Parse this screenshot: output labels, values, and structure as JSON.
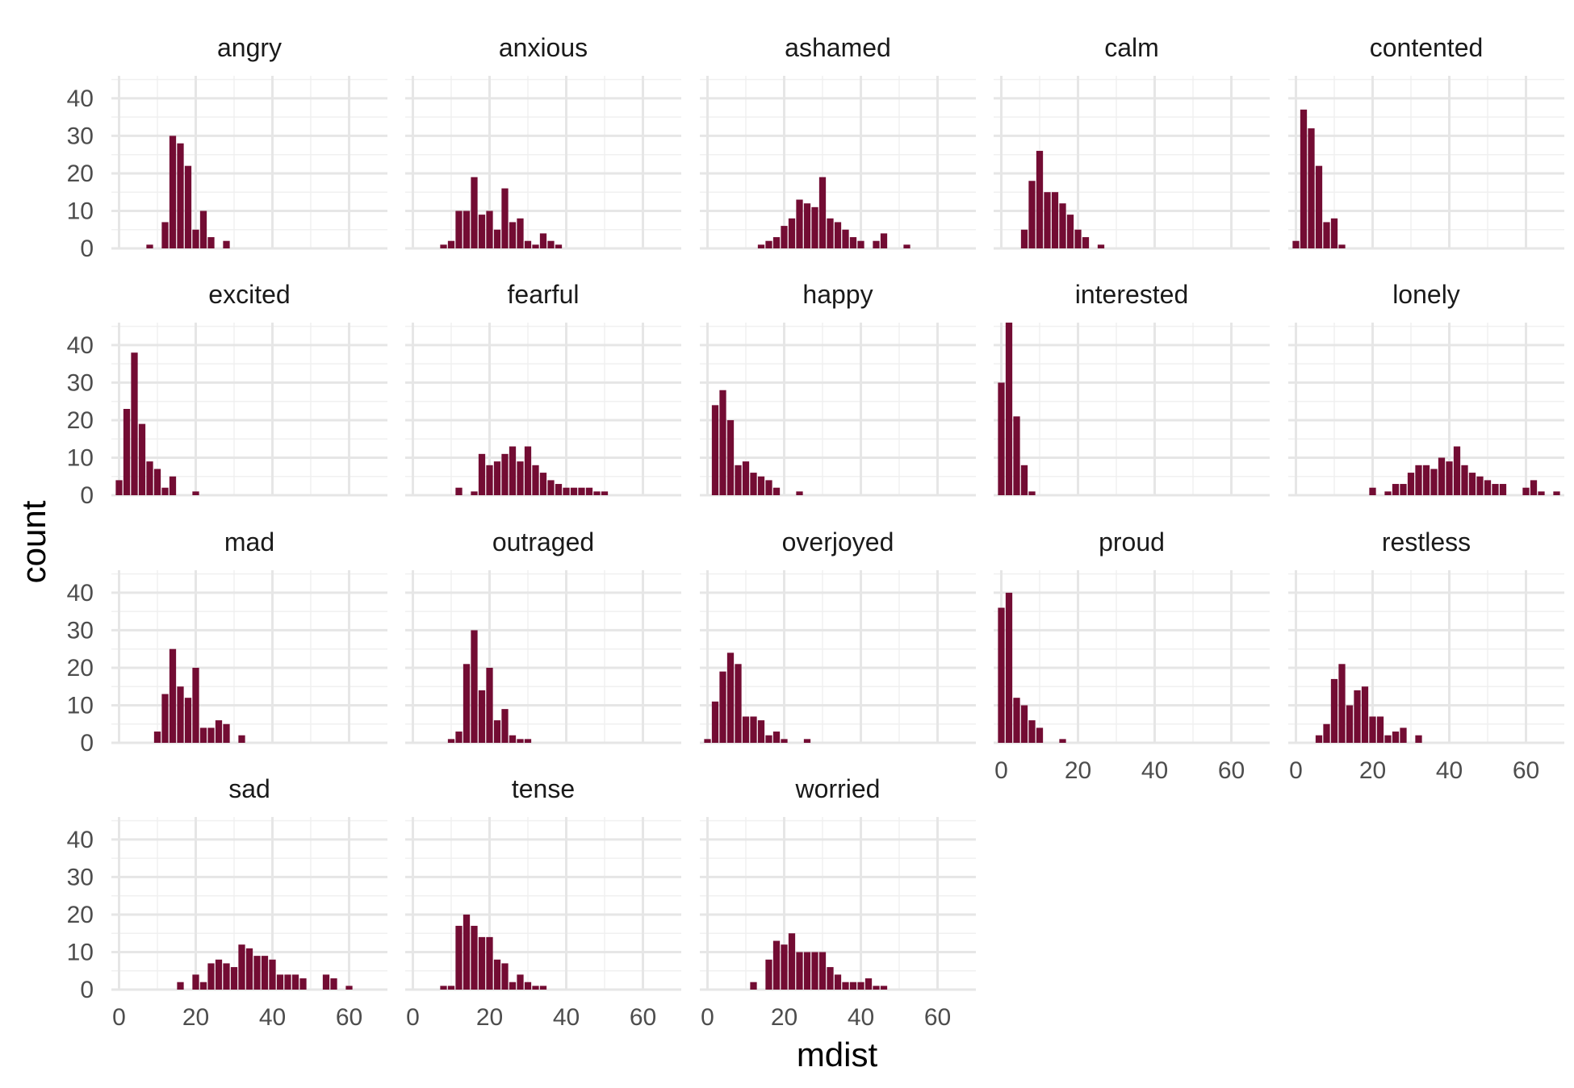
{
  "chart_data": {
    "type": "bar",
    "xlabel": "mdist",
    "ylabel": "count",
    "xlim": [
      -2,
      70
    ],
    "ylim": [
      0,
      46
    ],
    "x_ticks": [
      0,
      20,
      40,
      60
    ],
    "y_ticks": [
      0,
      10,
      20,
      30,
      40
    ],
    "bin_width": 1.74,
    "bar_color": "#730c33",
    "grid": true,
    "panels": [
      {
        "title": "angry",
        "bins": [
          {
            "x": 8,
            "y": 1
          },
          {
            "x": 12,
            "y": 7
          },
          {
            "x": 14,
            "y": 30
          },
          {
            "x": 16,
            "y": 28
          },
          {
            "x": 18,
            "y": 22
          },
          {
            "x": 20,
            "y": 5
          },
          {
            "x": 22,
            "y": 10
          },
          {
            "x": 24,
            "y": 3
          },
          {
            "x": 28,
            "y": 2
          }
        ]
      },
      {
        "title": "anxious",
        "bins": [
          {
            "x": 8,
            "y": 1
          },
          {
            "x": 10,
            "y": 2
          },
          {
            "x": 12,
            "y": 10
          },
          {
            "x": 14,
            "y": 10
          },
          {
            "x": 16,
            "y": 19
          },
          {
            "x": 18,
            "y": 9
          },
          {
            "x": 20,
            "y": 10
          },
          {
            "x": 22,
            "y": 5
          },
          {
            "x": 24,
            "y": 16
          },
          {
            "x": 26,
            "y": 7
          },
          {
            "x": 28,
            "y": 8
          },
          {
            "x": 30,
            "y": 2
          },
          {
            "x": 32,
            "y": 1
          },
          {
            "x": 34,
            "y": 4
          },
          {
            "x": 36,
            "y": 2
          },
          {
            "x": 38,
            "y": 1
          }
        ]
      },
      {
        "title": "ashamed",
        "bins": [
          {
            "x": 14,
            "y": 1
          },
          {
            "x": 16,
            "y": 2
          },
          {
            "x": 18,
            "y": 3
          },
          {
            "x": 20,
            "y": 6
          },
          {
            "x": 22,
            "y": 8
          },
          {
            "x": 24,
            "y": 13
          },
          {
            "x": 26,
            "y": 12
          },
          {
            "x": 28,
            "y": 11
          },
          {
            "x": 30,
            "y": 19
          },
          {
            "x": 32,
            "y": 8
          },
          {
            "x": 34,
            "y": 7
          },
          {
            "x": 36,
            "y": 5
          },
          {
            "x": 38,
            "y": 3
          },
          {
            "x": 40,
            "y": 2
          },
          {
            "x": 44,
            "y": 2
          },
          {
            "x": 46,
            "y": 4
          },
          {
            "x": 52,
            "y": 1
          }
        ]
      },
      {
        "title": "calm",
        "bins": [
          {
            "x": 6,
            "y": 5
          },
          {
            "x": 8,
            "y": 18
          },
          {
            "x": 10,
            "y": 26
          },
          {
            "x": 12,
            "y": 15
          },
          {
            "x": 14,
            "y": 15
          },
          {
            "x": 16,
            "y": 12
          },
          {
            "x": 18,
            "y": 9
          },
          {
            "x": 20,
            "y": 5
          },
          {
            "x": 22,
            "y": 3
          },
          {
            "x": 26,
            "y": 1
          }
        ]
      },
      {
        "title": "contented",
        "bins": [
          {
            "x": 0,
            "y": 2
          },
          {
            "x": 2,
            "y": 37
          },
          {
            "x": 4,
            "y": 32
          },
          {
            "x": 6,
            "y": 22
          },
          {
            "x": 8,
            "y": 7
          },
          {
            "x": 10,
            "y": 8
          },
          {
            "x": 12,
            "y": 1
          }
        ]
      },
      {
        "title": "excited",
        "bins": [
          {
            "x": 0,
            "y": 4
          },
          {
            "x": 2,
            "y": 23
          },
          {
            "x": 4,
            "y": 38
          },
          {
            "x": 6,
            "y": 19
          },
          {
            "x": 8,
            "y": 9
          },
          {
            "x": 10,
            "y": 7
          },
          {
            "x": 12,
            "y": 2
          },
          {
            "x": 14,
            "y": 5
          },
          {
            "x": 20,
            "y": 1
          }
        ]
      },
      {
        "title": "fearful",
        "bins": [
          {
            "x": 12,
            "y": 2
          },
          {
            "x": 16,
            "y": 1
          },
          {
            "x": 18,
            "y": 11
          },
          {
            "x": 20,
            "y": 8
          },
          {
            "x": 22,
            "y": 9
          },
          {
            "x": 24,
            "y": 11
          },
          {
            "x": 26,
            "y": 13
          },
          {
            "x": 28,
            "y": 9
          },
          {
            "x": 30,
            "y": 13
          },
          {
            "x": 32,
            "y": 8
          },
          {
            "x": 34,
            "y": 6
          },
          {
            "x": 36,
            "y": 4
          },
          {
            "x": 38,
            "y": 3
          },
          {
            "x": 40,
            "y": 2
          },
          {
            "x": 42,
            "y": 2
          },
          {
            "x": 44,
            "y": 2
          },
          {
            "x": 46,
            "y": 2
          },
          {
            "x": 48,
            "y": 1
          },
          {
            "x": 50,
            "y": 1
          }
        ]
      },
      {
        "title": "happy",
        "bins": [
          {
            "x": 2,
            "y": 24
          },
          {
            "x": 4,
            "y": 28
          },
          {
            "x": 6,
            "y": 20
          },
          {
            "x": 8,
            "y": 8
          },
          {
            "x": 10,
            "y": 9
          },
          {
            "x": 12,
            "y": 6
          },
          {
            "x": 14,
            "y": 5
          },
          {
            "x": 16,
            "y": 4
          },
          {
            "x": 18,
            "y": 2
          },
          {
            "x": 24,
            "y": 1
          }
        ]
      },
      {
        "title": "interested",
        "bins": [
          {
            "x": 0,
            "y": 30
          },
          {
            "x": 2,
            "y": 46
          },
          {
            "x": 4,
            "y": 21
          },
          {
            "x": 6,
            "y": 8
          },
          {
            "x": 8,
            "y": 1
          }
        ]
      },
      {
        "title": "lonely",
        "bins": [
          {
            "x": 20,
            "y": 2
          },
          {
            "x": 24,
            "y": 1
          },
          {
            "x": 26,
            "y": 3
          },
          {
            "x": 28,
            "y": 3
          },
          {
            "x": 30,
            "y": 6
          },
          {
            "x": 32,
            "y": 8
          },
          {
            "x": 34,
            "y": 8
          },
          {
            "x": 36,
            "y": 7
          },
          {
            "x": 38,
            "y": 10
          },
          {
            "x": 40,
            "y": 9
          },
          {
            "x": 42,
            "y": 13
          },
          {
            "x": 44,
            "y": 8
          },
          {
            "x": 46,
            "y": 6
          },
          {
            "x": 48,
            "y": 5
          },
          {
            "x": 50,
            "y": 4
          },
          {
            "x": 52,
            "y": 3
          },
          {
            "x": 54,
            "y": 3
          },
          {
            "x": 60,
            "y": 2
          },
          {
            "x": 62,
            "y": 4
          },
          {
            "x": 64,
            "y": 1
          },
          {
            "x": 68,
            "y": 1
          }
        ]
      },
      {
        "title": "mad",
        "bins": [
          {
            "x": 10,
            "y": 3
          },
          {
            "x": 12,
            "y": 13
          },
          {
            "x": 14,
            "y": 25
          },
          {
            "x": 16,
            "y": 15
          },
          {
            "x": 18,
            "y": 12
          },
          {
            "x": 20,
            "y": 20
          },
          {
            "x": 22,
            "y": 4
          },
          {
            "x": 24,
            "y": 4
          },
          {
            "x": 26,
            "y": 6
          },
          {
            "x": 28,
            "y": 5
          },
          {
            "x": 32,
            "y": 2
          }
        ]
      },
      {
        "title": "outraged",
        "bins": [
          {
            "x": 10,
            "y": 1
          },
          {
            "x": 12,
            "y": 3
          },
          {
            "x": 14,
            "y": 21
          },
          {
            "x": 16,
            "y": 30
          },
          {
            "x": 18,
            "y": 14
          },
          {
            "x": 20,
            "y": 20
          },
          {
            "x": 22,
            "y": 6
          },
          {
            "x": 24,
            "y": 9
          },
          {
            "x": 26,
            "y": 2
          },
          {
            "x": 28,
            "y": 1
          },
          {
            "x": 30,
            "y": 1
          }
        ]
      },
      {
        "title": "overjoyed",
        "bins": [
          {
            "x": 0,
            "y": 1
          },
          {
            "x": 2,
            "y": 11
          },
          {
            "x": 4,
            "y": 19
          },
          {
            "x": 6,
            "y": 24
          },
          {
            "x": 8,
            "y": 21
          },
          {
            "x": 10,
            "y": 7
          },
          {
            "x": 12,
            "y": 7
          },
          {
            "x": 14,
            "y": 6
          },
          {
            "x": 16,
            "y": 2
          },
          {
            "x": 18,
            "y": 3
          },
          {
            "x": 20,
            "y": 1
          },
          {
            "x": 26,
            "y": 1
          }
        ]
      },
      {
        "title": "proud",
        "bins": [
          {
            "x": 0,
            "y": 36
          },
          {
            "x": 2,
            "y": 40
          },
          {
            "x": 4,
            "y": 12
          },
          {
            "x": 6,
            "y": 10
          },
          {
            "x": 8,
            "y": 6
          },
          {
            "x": 10,
            "y": 4
          },
          {
            "x": 16,
            "y": 1
          }
        ]
      },
      {
        "title": "restless",
        "bins": [
          {
            "x": 6,
            "y": 2
          },
          {
            "x": 8,
            "y": 5
          },
          {
            "x": 10,
            "y": 17
          },
          {
            "x": 12,
            "y": 21
          },
          {
            "x": 14,
            "y": 10
          },
          {
            "x": 16,
            "y": 14
          },
          {
            "x": 18,
            "y": 15
          },
          {
            "x": 20,
            "y": 7
          },
          {
            "x": 22,
            "y": 7
          },
          {
            "x": 24,
            "y": 2
          },
          {
            "x": 26,
            "y": 3
          },
          {
            "x": 28,
            "y": 4
          },
          {
            "x": 32,
            "y": 2
          }
        ]
      },
      {
        "title": "sad",
        "bins": [
          {
            "x": 16,
            "y": 2
          },
          {
            "x": 20,
            "y": 4
          },
          {
            "x": 22,
            "y": 2
          },
          {
            "x": 24,
            "y": 7
          },
          {
            "x": 26,
            "y": 8
          },
          {
            "x": 28,
            "y": 7
          },
          {
            "x": 30,
            "y": 6
          },
          {
            "x": 32,
            "y": 12
          },
          {
            "x": 34,
            "y": 11
          },
          {
            "x": 36,
            "y": 9
          },
          {
            "x": 38,
            "y": 9
          },
          {
            "x": 40,
            "y": 8
          },
          {
            "x": 42,
            "y": 4
          },
          {
            "x": 44,
            "y": 4
          },
          {
            "x": 46,
            "y": 4
          },
          {
            "x": 48,
            "y": 3
          },
          {
            "x": 54,
            "y": 4
          },
          {
            "x": 56,
            "y": 3
          },
          {
            "x": 60,
            "y": 1
          }
        ]
      },
      {
        "title": "tense",
        "bins": [
          {
            "x": 8,
            "y": 1
          },
          {
            "x": 10,
            "y": 1
          },
          {
            "x": 12,
            "y": 17
          },
          {
            "x": 14,
            "y": 20
          },
          {
            "x": 16,
            "y": 17
          },
          {
            "x": 18,
            "y": 14
          },
          {
            "x": 20,
            "y": 14
          },
          {
            "x": 22,
            "y": 8
          },
          {
            "x": 24,
            "y": 7
          },
          {
            "x": 26,
            "y": 2
          },
          {
            "x": 28,
            "y": 4
          },
          {
            "x": 30,
            "y": 2
          },
          {
            "x": 32,
            "y": 1
          },
          {
            "x": 34,
            "y": 1
          }
        ]
      },
      {
        "title": "worried",
        "bins": [
          {
            "x": 12,
            "y": 2
          },
          {
            "x": 16,
            "y": 8
          },
          {
            "x": 18,
            "y": 13
          },
          {
            "x": 20,
            "y": 12
          },
          {
            "x": 22,
            "y": 15
          },
          {
            "x": 24,
            "y": 10
          },
          {
            "x": 26,
            "y": 10
          },
          {
            "x": 28,
            "y": 10
          },
          {
            "x": 30,
            "y": 10
          },
          {
            "x": 32,
            "y": 6
          },
          {
            "x": 34,
            "y": 4
          },
          {
            "x": 36,
            "y": 2
          },
          {
            "x": 38,
            "y": 2
          },
          {
            "x": 40,
            "y": 2
          },
          {
            "x": 42,
            "y": 3
          },
          {
            "x": 44,
            "y": 1
          },
          {
            "x": 46,
            "y": 1
          }
        ]
      }
    ]
  }
}
